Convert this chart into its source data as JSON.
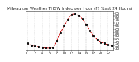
{
  "title": "Milwaukee Weather THSW Index per Hour (F) (Last 24 Hours)",
  "x": [
    0,
    1,
    2,
    3,
    4,
    5,
    6,
    7,
    8,
    9,
    10,
    11,
    12,
    13,
    14,
    15,
    16,
    17,
    18,
    19,
    20,
    21,
    22,
    23
  ],
  "y": [
    38,
    35,
    34,
    33,
    32,
    31,
    31,
    32,
    42,
    55,
    65,
    75,
    83,
    84,
    81,
    76,
    68,
    58,
    50,
    44,
    40,
    38,
    36,
    35
  ],
  "line_color": "#cc0000",
  "marker_color": "#111111",
  "bg_color": "#ffffff",
  "plot_bg": "#ffffff",
  "grid_color": "#999999",
  "ylim_min": 28,
  "ylim_max": 88,
  "yticks": [
    30,
    35,
    40,
    45,
    50,
    55,
    60,
    65,
    70,
    75,
    80,
    85
  ],
  "ytick_labels": [
    "30",
    "35",
    "40",
    "45",
    "50",
    "55",
    "60",
    "65",
    "70",
    "75",
    "80",
    "85"
  ],
  "title_fontsize": 4.2,
  "tick_fontsize": 3.5,
  "line_width": 0.7,
  "marker_size": 1.2
}
